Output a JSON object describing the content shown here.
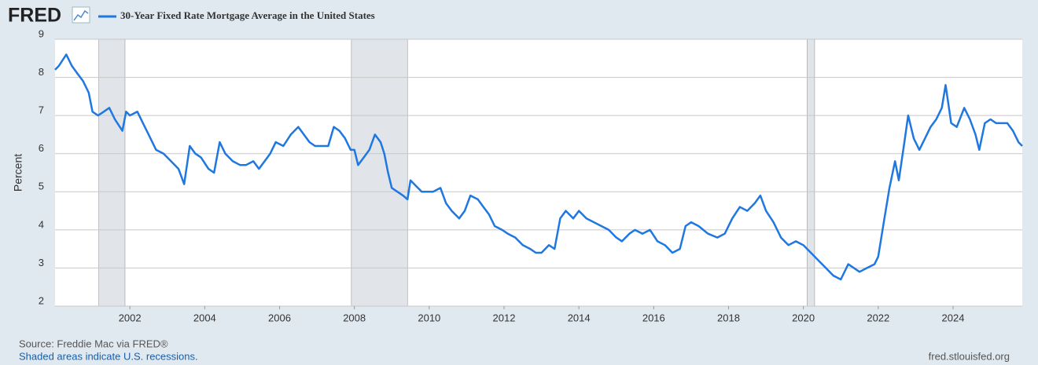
{
  "logo": "FRED",
  "chart_data": {
    "type": "line",
    "x": [
      2000.0,
      2000.1,
      2000.3,
      2000.45,
      2000.6,
      2000.75,
      2000.9,
      2001.0,
      2001.15,
      2001.3,
      2001.45,
      2001.6,
      2001.8,
      2001.9,
      2002.0,
      2002.2,
      2002.35,
      2002.5,
      2002.7,
      2002.9,
      2003.1,
      2003.3,
      2003.45,
      2003.6,
      2003.75,
      2003.9,
      2004.1,
      2004.25,
      2004.4,
      2004.55,
      2004.75,
      2004.95,
      2005.1,
      2005.3,
      2005.45,
      2005.6,
      2005.75,
      2005.9,
      2006.1,
      2006.3,
      2006.5,
      2006.65,
      2006.8,
      2006.95,
      2007.1,
      2007.3,
      2007.45,
      2007.6,
      2007.75,
      2007.9,
      2008.0,
      2008.1,
      2008.25,
      2008.4,
      2008.55,
      2008.7,
      2008.8,
      2008.9,
      2009.0,
      2009.15,
      2009.3,
      2009.42,
      2009.5,
      2009.6,
      2009.8,
      2009.95,
      2010.1,
      2010.3,
      2010.45,
      2010.6,
      2010.8,
      2010.95,
      2011.1,
      2011.3,
      2011.45,
      2011.6,
      2011.75,
      2011.95,
      2012.1,
      2012.3,
      2012.5,
      2012.7,
      2012.85,
      2013.0,
      2013.2,
      2013.35,
      2013.5,
      2013.65,
      2013.85,
      2014.0,
      2014.2,
      2014.4,
      2014.6,
      2014.8,
      2015.0,
      2015.15,
      2015.35,
      2015.5,
      2015.7,
      2015.9,
      2016.1,
      2016.3,
      2016.5,
      2016.7,
      2016.85,
      2017.0,
      2017.2,
      2017.45,
      2017.7,
      2017.9,
      2018.1,
      2018.3,
      2018.5,
      2018.7,
      2018.85,
      2019.0,
      2019.2,
      2019.4,
      2019.6,
      2019.8,
      2020.0,
      2020.2,
      2020.4,
      2020.6,
      2020.8,
      2021.0,
      2021.2,
      2021.35,
      2021.5,
      2021.7,
      2021.9,
      2022.0,
      2022.15,
      2022.3,
      2022.45,
      2022.55,
      2022.7,
      2022.8,
      2022.95,
      2023.1,
      2023.25,
      2023.4,
      2023.55,
      2023.7,
      2023.8,
      2023.95,
      2024.1,
      2024.3,
      2024.45,
      2024.6,
      2024.7,
      2024.85,
      2025.0,
      2025.15,
      2025.3,
      2025.45,
      2025.6,
      2025.75,
      2025.85
    ],
    "series": [
      {
        "name": "30-Year Fixed Rate Mortgage Average in the United States",
        "color": "#1f77e0",
        "values": [
          8.2,
          8.3,
          8.6,
          8.3,
          8.1,
          7.9,
          7.6,
          7.1,
          7.0,
          7.1,
          7.2,
          6.9,
          6.6,
          7.1,
          7.0,
          7.1,
          6.8,
          6.5,
          6.1,
          6.0,
          5.8,
          5.6,
          5.2,
          6.2,
          6.0,
          5.9,
          5.6,
          5.5,
          6.3,
          6.0,
          5.8,
          5.7,
          5.7,
          5.8,
          5.6,
          5.8,
          6.0,
          6.3,
          6.2,
          6.5,
          6.7,
          6.5,
          6.3,
          6.2,
          6.2,
          6.2,
          6.7,
          6.6,
          6.4,
          6.1,
          6.1,
          5.7,
          5.9,
          6.1,
          6.5,
          6.3,
          6.0,
          5.5,
          5.1,
          5.0,
          4.9,
          4.8,
          5.3,
          5.2,
          5.0,
          5.0,
          5.0,
          5.1,
          4.7,
          4.5,
          4.3,
          4.5,
          4.9,
          4.8,
          4.6,
          4.4,
          4.1,
          4.0,
          3.9,
          3.8,
          3.6,
          3.5,
          3.4,
          3.4,
          3.6,
          3.5,
          4.3,
          4.5,
          4.3,
          4.5,
          4.3,
          4.2,
          4.1,
          4.0,
          3.8,
          3.7,
          3.9,
          4.0,
          3.9,
          4.0,
          3.7,
          3.6,
          3.4,
          3.5,
          4.1,
          4.2,
          4.1,
          3.9,
          3.8,
          3.9,
          4.3,
          4.6,
          4.5,
          4.7,
          4.9,
          4.5,
          4.2,
          3.8,
          3.6,
          3.7,
          3.6,
          3.4,
          3.2,
          3.0,
          2.8,
          2.7,
          3.1,
          3.0,
          2.9,
          3.0,
          3.1,
          3.3,
          4.2,
          5.1,
          5.8,
          5.3,
          6.3,
          7.0,
          6.4,
          6.1,
          6.4,
          6.7,
          6.9,
          7.2,
          7.8,
          6.8,
          6.7,
          7.2,
          6.9,
          6.5,
          6.1,
          6.8,
          6.9,
          6.8,
          6.8,
          6.8,
          6.6,
          6.3,
          6.2
        ]
      }
    ],
    "xlim": [
      2000.0,
      2025.85
    ],
    "xticks": [
      2002,
      2004,
      2006,
      2008,
      2010,
      2012,
      2014,
      2016,
      2018,
      2020,
      2022,
      2024
    ],
    "ylim": [
      2,
      9
    ],
    "yticks": [
      2,
      3,
      4,
      5,
      6,
      7,
      8,
      9
    ],
    "y_label": "Percent",
    "grid": true,
    "recessions": [
      [
        2001.17,
        2001.87
      ],
      [
        2007.92,
        2009.42
      ],
      [
        2020.1,
        2020.3
      ]
    ],
    "source": "Source: Freddie Mac via FRED®",
    "note": "Shaded areas indicate U.S. recessions.",
    "site": "fred.stlouisfed.org"
  }
}
